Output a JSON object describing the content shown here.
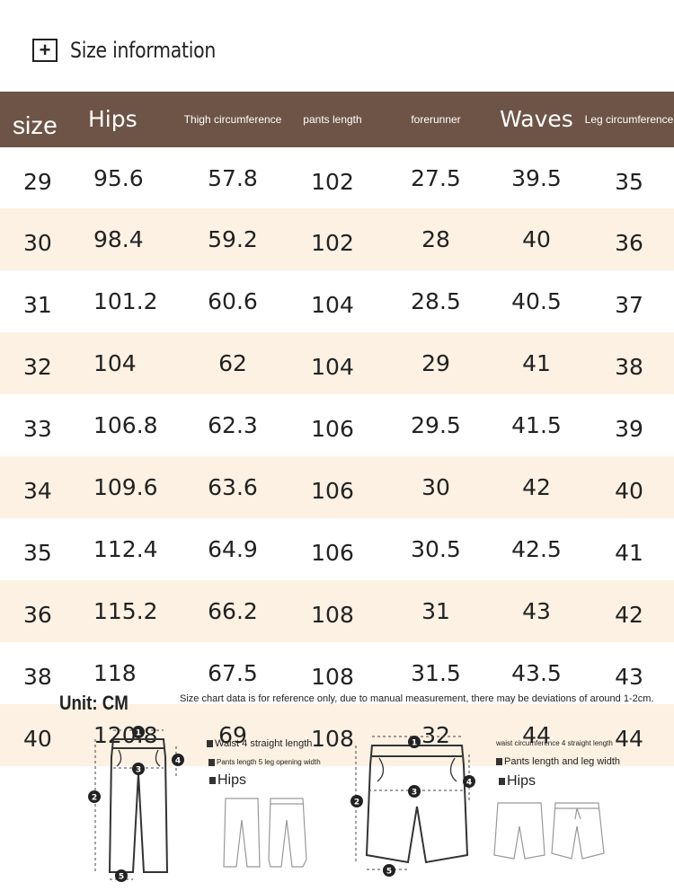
{
  "title": {
    "icon": "plus-icon",
    "text": "Size information"
  },
  "table": {
    "headers": [
      "size",
      "Hips",
      "Thigh circumference",
      "pants length",
      "forerunner",
      "Waves",
      "Leg circumference"
    ],
    "rows": [
      [
        "29",
        "95.6",
        "57.8",
        "102",
        "27.5",
        "39.5",
        "35"
      ],
      [
        "30",
        "98.4",
        "59.2",
        "102",
        "28",
        "40",
        "36"
      ],
      [
        "31",
        "101.2",
        "60.6",
        "104",
        "28.5",
        "40.5",
        "37"
      ],
      [
        "32",
        "104",
        "62",
        "104",
        "29",
        "41",
        "38"
      ],
      [
        "33",
        "106.8",
        "62.3",
        "106",
        "29.5",
        "41.5",
        "39"
      ],
      [
        "34",
        "109.6",
        "63.6",
        "106",
        "30",
        "42",
        "40"
      ],
      [
        "35",
        "112.4",
        "64.9",
        "106",
        "30.5",
        "42.5",
        "41"
      ],
      [
        "36",
        "115.2",
        "66.2",
        "108",
        "31",
        "43",
        "42"
      ],
      [
        "38",
        "118",
        "67.5",
        "108",
        "31.5",
        "43.5",
        "43"
      ],
      [
        "40",
        "120.8",
        "69",
        "108",
        "32",
        "44",
        "44"
      ]
    ]
  },
  "unit": "Unit: CM",
  "note": "Size chart data is for reference only, due to manual measurement, there may be deviations of around 1-2cm.",
  "colors": {
    "header_bg": "#6e5446",
    "alt_row": "#fcf1e3"
  },
  "left_diagram": {
    "markers": [
      "1",
      "2",
      "3",
      "4",
      "5"
    ],
    "line1": "Waist 4 straight length",
    "line2": "Pants length 5 leg opening width",
    "line3": "Hips"
  },
  "right_diagram": {
    "markers": [
      "1",
      "2",
      "3",
      "4",
      "5"
    ],
    "line1": "waist circumference 4 straight length",
    "line2": "Pants length and leg width",
    "line3": "Hips"
  }
}
